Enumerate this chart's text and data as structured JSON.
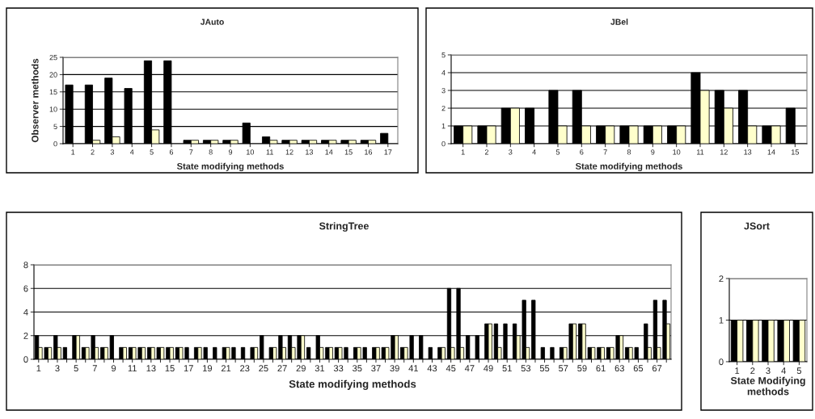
{
  "chart_data": [
    {
      "type": "bar",
      "title": "JAuto",
      "xlabel": "State modifying methods",
      "ylabel": "Observer methods",
      "categories": [
        "1",
        "2",
        "3",
        "4",
        "5",
        "6",
        "7",
        "8",
        "9",
        "10",
        "11",
        "12",
        "13",
        "14",
        "15",
        "16",
        "17"
      ],
      "series": [
        {
          "color": "#000000",
          "values": [
            17,
            17,
            19,
            16,
            24,
            24,
            1,
            1,
            1,
            6,
            2,
            1,
            1,
            1,
            1,
            1,
            3
          ]
        },
        {
          "color": "#ffffcc",
          "values": [
            0,
            1,
            2,
            0,
            4,
            0,
            1,
            1,
            1,
            0,
            1,
            1,
            1,
            1,
            1,
            1,
            0
          ]
        }
      ],
      "ylim": [
        0,
        25
      ],
      "yticks": [
        0,
        5,
        10,
        15,
        20,
        25
      ],
      "grid": "y"
    },
    {
      "type": "bar",
      "title": "JBel",
      "xlabel": "State modifying methods",
      "categories": [
        "1",
        "2",
        "3",
        "4",
        "5",
        "6",
        "7",
        "8",
        "9",
        "10",
        "11",
        "12",
        "13",
        "14",
        "15"
      ],
      "series": [
        {
          "color": "#000000",
          "values": [
            1,
            1,
            2,
            2,
            3,
            3,
            1,
            1,
            1,
            1,
            4,
            3,
            3,
            1,
            2
          ]
        },
        {
          "color": "#ffffcc",
          "values": [
            1,
            1,
            2,
            0,
            1,
            1,
            1,
            1,
            1,
            1,
            3,
            2,
            1,
            1,
            null
          ]
        }
      ],
      "ylim": [
        0,
        5
      ],
      "yticks": [
        0,
        1,
        2,
        3,
        4,
        5
      ],
      "grid": "y"
    },
    {
      "type": "bar",
      "title": "StringTree",
      "xlabel": "State modifying methods",
      "categories": [
        "1",
        null,
        "3",
        null,
        "5",
        null,
        "7",
        null,
        "9",
        null,
        "11",
        null,
        "13",
        null,
        "15",
        null,
        "17",
        null,
        "19",
        null,
        "21",
        null,
        "23",
        null,
        "25",
        null,
        "27",
        null,
        "29",
        null,
        "31",
        null,
        "33",
        null,
        "35",
        null,
        "37",
        null,
        "39",
        null,
        "41",
        null,
        "43",
        null,
        "45",
        null,
        "47",
        null,
        "49",
        null,
        "51",
        null,
        "53",
        null,
        "55",
        null,
        "57",
        null,
        "59",
        null,
        "61",
        null,
        "63",
        null,
        "65",
        null,
        "67",
        null
      ],
      "series": [
        {
          "color": "#000000",
          "values": [
            2,
            1,
            2,
            1,
            2,
            1,
            2,
            1,
            2,
            1,
            1,
            1,
            1,
            1,
            1,
            1,
            1,
            1,
            1,
            1,
            1,
            1,
            1,
            1,
            2,
            1,
            2,
            2,
            2,
            1,
            2,
            1,
            1,
            1,
            1,
            1,
            1,
            1,
            2,
            1,
            2,
            2,
            1,
            1,
            6,
            6,
            2,
            2,
            3,
            3,
            3,
            3,
            5,
            5,
            1,
            1,
            1,
            3,
            3,
            1,
            1,
            1,
            2,
            1,
            1,
            3,
            5,
            5
          ]
        },
        {
          "color": "#ffffcc",
          "values": [
            1,
            1,
            1,
            0,
            2,
            1,
            1,
            1,
            0,
            1,
            1,
            1,
            1,
            1,
            1,
            1,
            0,
            1,
            0,
            0,
            1,
            0,
            0,
            1,
            0,
            1,
            1,
            1,
            2,
            0,
            1,
            1,
            1,
            0,
            1,
            0,
            1,
            1,
            2,
            1,
            0,
            0,
            0,
            1,
            1,
            1,
            0,
            0,
            3,
            1,
            0,
            2,
            1,
            0,
            0,
            0,
            1,
            3,
            3,
            1,
            1,
            1,
            2,
            1,
            0,
            1,
            1,
            3
          ]
        }
      ],
      "ylim": [
        0,
        8
      ],
      "yticks": [
        0,
        2,
        4,
        6,
        8
      ],
      "grid": "y"
    },
    {
      "type": "bar",
      "title": "JSort",
      "xlabel": "State Modifying methods",
      "categories": [
        "1",
        "2",
        "3",
        "4",
        "5"
      ],
      "series": [
        {
          "color": "#000000",
          "values": [
            1,
            1,
            1,
            1,
            1
          ]
        },
        {
          "color": "#ffffcc",
          "values": [
            1,
            1,
            1,
            1,
            1
          ]
        }
      ],
      "ylim": [
        0,
        2
      ],
      "yticks": [
        0,
        1,
        2
      ],
      "grid": "y"
    }
  ]
}
